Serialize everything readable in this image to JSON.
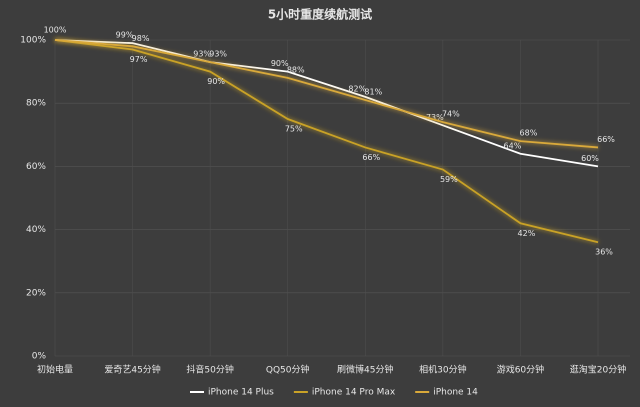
{
  "chart_data": {
    "type": "line",
    "title": "5小时重度续航测试",
    "categories": [
      "初始电量",
      "爱奇艺45分钟",
      "抖音50分钟",
      "QQ50分钟",
      "刷微博45分钟",
      "相机30分钟",
      "游戏60分钟",
      "逛淘宝20分钟"
    ],
    "series": [
      {
        "name": "iPhone 14 Plus",
        "color": "#ffffff",
        "values": [
          100,
          99,
          93,
          90,
          82,
          73,
          64,
          60
        ],
        "value_labels": [
          "100%",
          "99%",
          "93%",
          "90%",
          "82%",
          "73%",
          "64%",
          "60%"
        ]
      },
      {
        "name": "iPhone 14 Pro Max",
        "color": "#c9a227",
        "values": [
          100,
          97,
          90,
          75,
          66,
          59,
          42,
          36
        ],
        "value_labels": [
          null,
          "97%",
          "90%",
          "75%",
          "66%",
          "59%",
          "42%",
          "36%"
        ]
      },
      {
        "name": "iPhone 14",
        "color": "#d9a93a",
        "values": [
          100,
          98,
          93,
          88,
          81,
          74,
          68,
          66
        ],
        "value_labels": [
          null,
          "98%",
          "93%",
          "88%",
          "81%",
          "74%",
          "68%",
          "66%"
        ]
      }
    ],
    "ylim": [
      0,
      100
    ],
    "yticks": [
      {
        "value": 0,
        "label": "0%"
      },
      {
        "value": 20,
        "label": "20%"
      },
      {
        "value": 40,
        "label": "40%"
      },
      {
        "value": 60,
        "label": "60%"
      },
      {
        "value": 80,
        "label": "80%"
      },
      {
        "value": 100,
        "label": "100%"
      }
    ],
    "grid": true,
    "legend": "bottom"
  }
}
